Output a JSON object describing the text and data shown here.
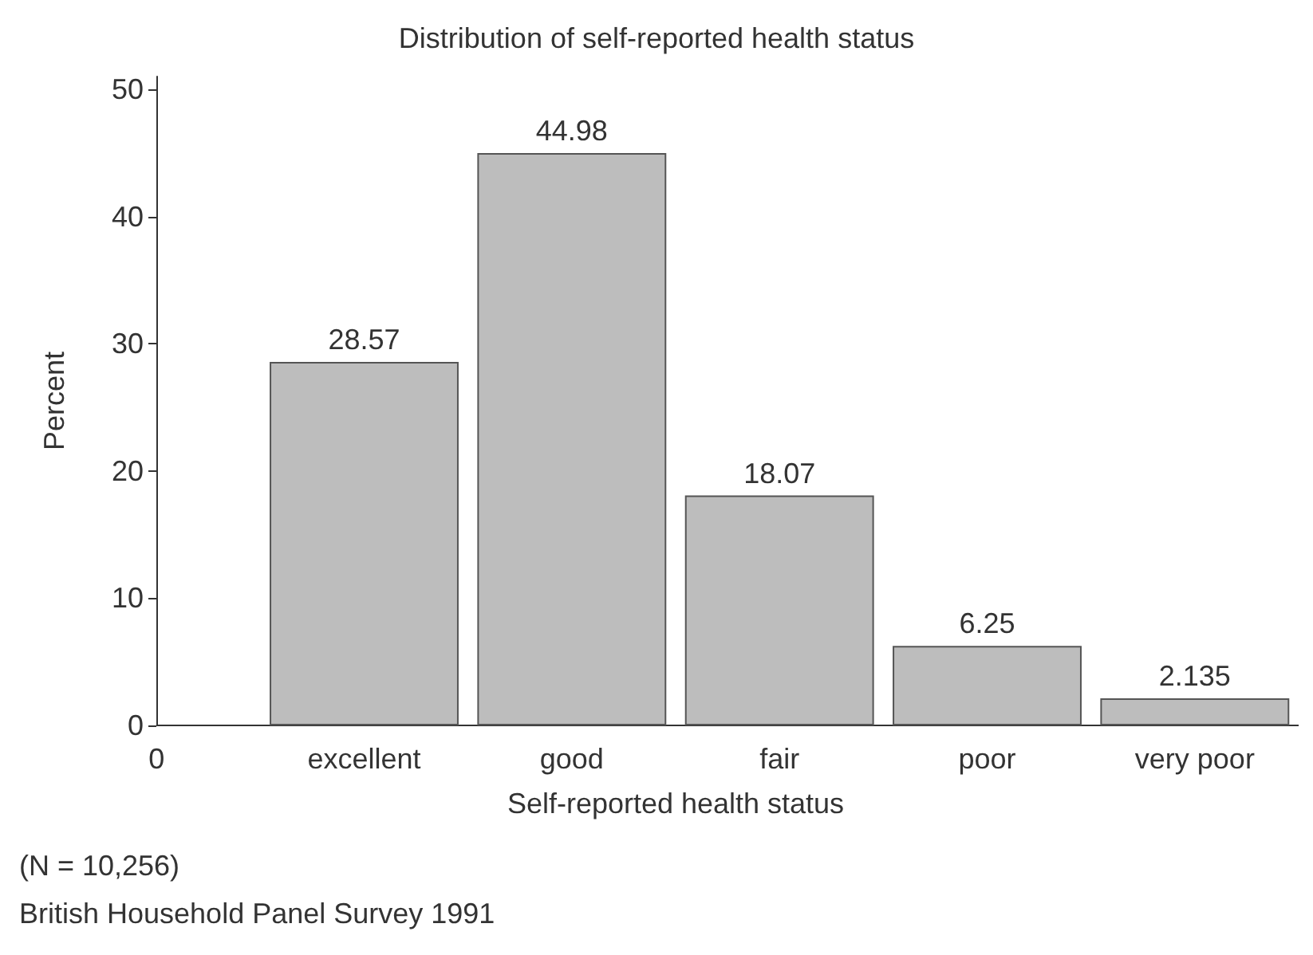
{
  "chart_data": {
    "type": "bar",
    "title": "Distribution of self-reported health status",
    "xlabel": "Self-reported health status",
    "ylabel": "Percent",
    "categories": [
      "0",
      "excellent",
      "good",
      "fair",
      "poor",
      "very poor"
    ],
    "values": [
      null,
      28.57,
      44.98,
      18.07,
      6.25,
      2.135
    ],
    "color": "#bdbdbd",
    "data_labels": true,
    "ylim": [
      0,
      51
    ],
    "yticks": [
      0,
      10,
      20,
      30,
      40,
      50
    ],
    "grid": false,
    "annotations": [
      "(N = 10,256)",
      "British Household Panel Survey 1991"
    ]
  }
}
